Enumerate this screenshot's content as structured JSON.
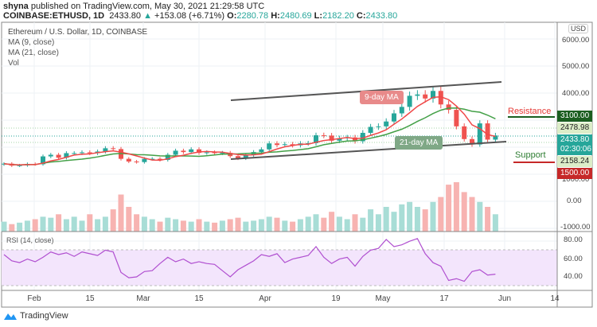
{
  "header": {
    "publisher": "shyna",
    "published_text": "published on TradingView.com, May 30, 2021 21:29:58 UTC",
    "symbol": "COINBASE:ETHUSD, 1D",
    "last": "2433.80",
    "change": "+153.08 (+6.71%)",
    "o_label": "O:",
    "o": "2280.78",
    "h_label": "H:",
    "h": "2480.69",
    "l_label": "L:",
    "l": "2182.20",
    "c_label": "C:",
    "c": "2433.80"
  },
  "legend": {
    "title": "Ethereum / U.S. Dollar, 1D, COINBASE",
    "ma9": "MA (9, close)",
    "ma21": "MA (21, close)",
    "vol": "Vol"
  },
  "axis": {
    "currency": "USD",
    "price_ticks": [
      "6000.00",
      "5000.00",
      "4000.00",
      "1000.00",
      "0.00",
      "-1000.00"
    ],
    "rsi_ticks": [
      "80.00",
      "60.00",
      "40.00"
    ],
    "time_ticks": [
      "Feb",
      "15",
      "Mar",
      "15",
      "Apr",
      "19",
      "May",
      "17",
      "Jun",
      "14"
    ]
  },
  "price_labels": {
    "resistance_value": "3100.00",
    "high": "2478.98",
    "last": "2433.80",
    "countdown": "02:30:06",
    "low": "2158.24",
    "support_value": "1500.00"
  },
  "annotations": {
    "ma9": "9-day MA",
    "ma21": "21-day MA",
    "resistance": "Resistance",
    "support": "Support"
  },
  "rsi_title": "RSI (14, close)",
  "brand": "TradingView",
  "colors": {
    "up": "#26a69a",
    "down": "#ef5350",
    "ma9": "#f04848",
    "ma21": "#43a047",
    "rsi": "#b04fd0",
    "resistance": "#1b5e20",
    "support": "#c62828"
  },
  "chart_data": {
    "type": "candlestick",
    "interval": "2-day samples, Jan 24 – May 30, 2021",
    "ylim": [
      -1000,
      6000
    ],
    "close": [
      1390,
      1320,
      1330,
      1380,
      1370,
      1660,
      1720,
      1610,
      1780,
      1780,
      1810,
      1780,
      1840,
      1960,
      1930,
      1570,
      1470,
      1450,
      1570,
      1570,
      1530,
      1720,
      1870,
      1820,
      1920,
      1790,
      1810,
      1780,
      1790,
      1670,
      1590,
      1710,
      1820,
      1920,
      2140,
      2080,
      2110,
      2070,
      2140,
      2150,
      2440,
      2430,
      2240,
      2330,
      2360,
      2220,
      2530,
      2750,
      2770,
      2950,
      3250,
      3490,
      3900,
      3950,
      3800,
      4080,
      3580,
      3380,
      2770,
      2300,
      2100,
      2880,
      2280,
      2433
    ],
    "volume": [
      20,
      15,
      18,
      22,
      25,
      30,
      28,
      35,
      25,
      30,
      22,
      35,
      25,
      30,
      45,
      75,
      50,
      35,
      30,
      25,
      20,
      28,
      25,
      22,
      20,
      25,
      20,
      18,
      22,
      25,
      28,
      20,
      22,
      25,
      30,
      28,
      22,
      20,
      25,
      30,
      35,
      28,
      40,
      30,
      25,
      35,
      28,
      45,
      35,
      50,
      40,
      55,
      60,
      50,
      45,
      60,
      70,
      95,
      100,
      80,
      70,
      60,
      50,
      35
    ],
    "rsi": [
      65,
      58,
      56,
      60,
      57,
      62,
      68,
      65,
      67,
      63,
      68,
      66,
      64,
      70,
      68,
      45,
      39,
      40,
      46,
      47,
      55,
      62,
      57,
      60,
      55,
      57,
      55,
      54,
      47,
      40,
      48,
      53,
      58,
      65,
      63,
      66,
      56,
      60,
      62,
      64,
      74,
      62,
      55,
      60,
      62,
      52,
      63,
      70,
      72,
      82,
      74,
      76,
      80,
      83,
      66,
      56,
      52,
      36,
      38,
      35,
      46,
      48,
      42,
      43
    ],
    "rsi_ylim": [
      20,
      90
    ],
    "rsi_bands": [
      30,
      70
    ]
  }
}
